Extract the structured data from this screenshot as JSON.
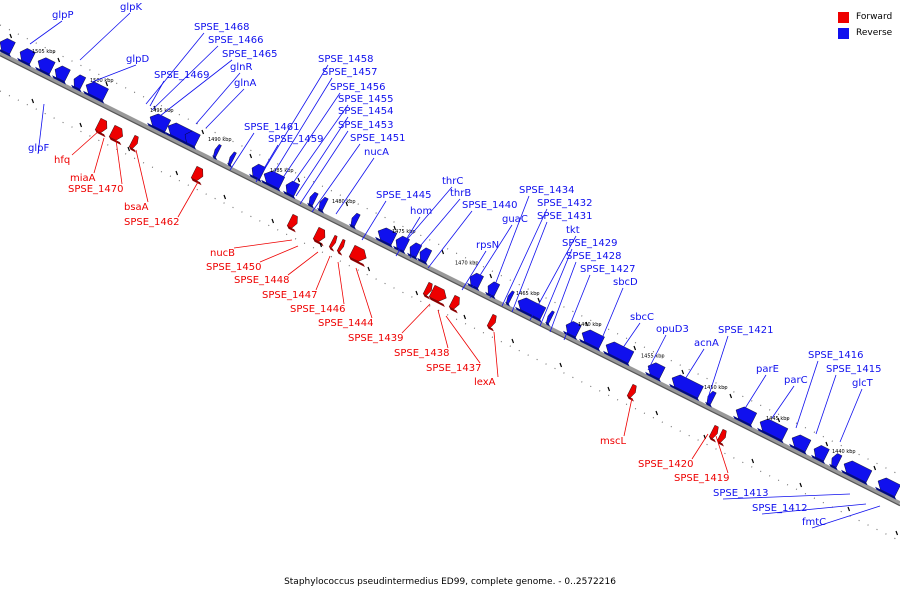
{
  "caption": "Staphylococcus pseudintermedius ED99, complete genome. - 0..2572216",
  "legend": [
    {
      "label": "Forward",
      "color": "#ee0000"
    },
    {
      "label": "Reverse",
      "color": "#1010ee"
    }
  ],
  "colors": {
    "forward": "#ee0000",
    "reverse": "#1010ee",
    "backbone": "#999999"
  },
  "ticks": [
    "1505 kbp",
    "1500 kbp",
    "1495 kbp",
    "1490 kbp",
    "1485 kbp",
    "1480 kbp",
    "1475 kbp",
    "1470 kbp",
    "1465 kbp",
    "1460 kbp",
    "1455 kbp",
    "1450 kbp",
    "1445 kbp",
    "1440 kbp"
  ],
  "reverse_labels": [
    "glpP",
    "glpK",
    "glpD",
    "SPSE_1468",
    "SPSE_1466",
    "SPSE_1465",
    "SPSE_1469",
    "glnR",
    "glnA",
    "SPSE_1458",
    "SPSE_1457",
    "SPSE_1456",
    "SPSE_1455",
    "SPSE_1454",
    "SPSE_1453",
    "SPSE_1451",
    "SPSE_1461",
    "SPSE_1459",
    "nucA",
    "thrC",
    "thrB",
    "SPSE_1445",
    "hom",
    "SPSE_1440",
    "guaC",
    "SPSE_1434",
    "SPSE_1432",
    "SPSE_1431",
    "rpsN",
    "tkt",
    "SPSE_1429",
    "SPSE_1428",
    "SPSE_1427",
    "sbcD",
    "sbcC",
    "opuD3",
    "acnA",
    "SPSE_1421",
    "parE",
    "parC",
    "SPSE_1416",
    "SPSE_1415",
    "glcT",
    "glpF",
    "SPSE_1413",
    "SPSE_1412",
    "fmtC"
  ],
  "forward_labels": [
    "hfq",
    "miaA",
    "SPSE_1470",
    "bsaA",
    "SPSE_1462",
    "nucB",
    "SPSE_1450",
    "SPSE_1448",
    "SPSE_1447",
    "SPSE_1446",
    "SPSE_1444",
    "SPSE_1439",
    "SPSE_1438",
    "SPSE_1437",
    "lexA",
    "mscL",
    "SPSE_1420",
    "SPSE_1419"
  ]
}
